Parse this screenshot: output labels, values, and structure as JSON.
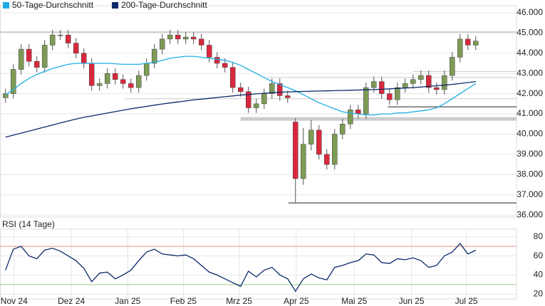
{
  "chart_data": [
    {
      "type": "candlestick",
      "legend": [
        {
          "name": "50-Tage-Durchschnitt",
          "color": "#1eaee6"
        },
        {
          "name": "200-Tage-Durchschnitt",
          "color": "#0b2a6b"
        }
      ],
      "x": [
        0,
        1,
        2,
        3,
        4,
        5,
        6,
        7,
        8,
        9,
        10,
        11,
        12,
        13,
        14,
        15,
        16,
        17,
        18,
        19,
        20,
        21,
        22,
        23,
        24,
        25,
        26,
        27,
        28,
        29,
        30,
        31,
        32,
        33,
        34,
        35,
        36,
        37,
        38,
        39,
        40,
        41,
        42,
        43,
        44,
        45,
        46,
        47,
        48,
        49,
        50,
        51,
        52,
        53,
        54,
        55,
        56,
        57,
        58,
        59,
        60
      ],
      "open": [
        41800,
        42000,
        43200,
        44200,
        43600,
        43300,
        44400,
        44900,
        44900,
        44500,
        44000,
        43500,
        42400,
        42500,
        43000,
        42700,
        42500,
        42300,
        42900,
        43500,
        44200,
        44700,
        44900,
        44700,
        44800,
        44700,
        44400,
        43800,
        43500,
        43300,
        42300,
        42100,
        41300,
        41500,
        42000,
        42500,
        41900,
        40600,
        37800,
        39500,
        40200,
        39000,
        38500,
        40000,
        40500,
        41200,
        41000,
        42300,
        42600,
        42000,
        41700,
        42300,
        42500,
        42700,
        42900,
        42300,
        42200,
        42900,
        43800,
        44700,
        44400
      ],
      "high": [
        42250,
        43450,
        44450,
        44450,
        43850,
        44650,
        45150,
        45150,
        45150,
        44750,
        44250,
        43750,
        42750,
        43250,
        43250,
        42950,
        42750,
        43150,
        43750,
        44450,
        44950,
        45150,
        45150,
        45050,
        45050,
        44950,
        44650,
        44050,
        43750,
        43550,
        42550,
        42350,
        41750,
        42250,
        42750,
        42750,
        42150,
        40800,
        40300,
        40700,
        40450,
        39250,
        40250,
        40750,
        41450,
        41450,
        42550,
        42850,
        42850,
        42250,
        42550,
        42750,
        42950,
        43150,
        43150,
        42550,
        43150,
        44050,
        44950,
        44950,
        44850
      ],
      "low": [
        41550,
        41750,
        42950,
        43350,
        43050,
        43050,
        44150,
        44650,
        44250,
        43750,
        43250,
        42150,
        42150,
        42250,
        42450,
        42250,
        42050,
        42050,
        42650,
        43250,
        43950,
        44450,
        44450,
        44450,
        44450,
        44150,
        43550,
        43250,
        43050,
        42050,
        41850,
        41050,
        41050,
        41250,
        41750,
        41650,
        41550,
        36600,
        37500,
        39200,
        38750,
        38250,
        38250,
        39750,
        40250,
        40750,
        40750,
        42050,
        41750,
        41450,
        41450,
        42050,
        42250,
        42450,
        42050,
        41950,
        41950,
        42650,
        43550,
        44150,
        44150
      ],
      "close": [
        42000,
        43200,
        44200,
        43600,
        43300,
        44400,
        44900,
        44900,
        44500,
        44000,
        43500,
        42400,
        42500,
        43000,
        42700,
        42500,
        42300,
        42900,
        43500,
        44200,
        44700,
        44900,
        44700,
        44800,
        44700,
        44400,
        43800,
        43500,
        43300,
        42300,
        42100,
        41300,
        41500,
        42000,
        42500,
        41900,
        41800,
        37800,
        39500,
        40200,
        39000,
        38500,
        40000,
        40500,
        41200,
        41000,
        42300,
        42600,
        42000,
        41700,
        42300,
        42500,
        42700,
        42900,
        42300,
        42200,
        42900,
        43800,
        44700,
        44400,
        44600
      ],
      "up_color": "#7d9b55",
      "down_color": "#d9283c",
      "series": [
        {
          "name": "50-Tage-Durchschnitt",
          "color": "#1eaee6",
          "values": [
            41950,
            42200,
            42500,
            42750,
            42950,
            43100,
            43250,
            43350,
            43450,
            43500,
            43500,
            43500,
            43500,
            43500,
            43480,
            43450,
            43450,
            43450,
            43500,
            43550,
            43650,
            43750,
            43800,
            43850,
            43850,
            43800,
            43750,
            43700,
            43650,
            43550,
            43400,
            43200,
            43000,
            42800,
            42600,
            42450,
            42300,
            42150,
            41950,
            41750,
            41550,
            41400,
            41250,
            41100,
            41050,
            41000,
            40950,
            40950,
            41000,
            41000,
            41050,
            41050,
            41100,
            41150,
            41200,
            41300,
            41500,
            41750,
            42000,
            42250,
            42500
          ]
        },
        {
          "name": "200-Tage-Durchschnitt",
          "color": "#0b2a6b",
          "values": [
            39850,
            39950,
            40050,
            40150,
            40250,
            40350,
            40450,
            40550,
            40650,
            40750,
            40830,
            40900,
            40970,
            41040,
            41110,
            41180,
            41250,
            41310,
            41370,
            41430,
            41490,
            41540,
            41590,
            41640,
            41690,
            41730,
            41770,
            41810,
            41850,
            41890,
            41930,
            41960,
            41990,
            42020,
            42050,
            42070,
            42090,
            42100,
            42110,
            42120,
            42130,
            42140,
            42150,
            42160,
            42170,
            42180,
            42190,
            42200,
            42220,
            42240,
            42260,
            42280,
            42300,
            42330,
            42360,
            42390,
            42420,
            42460,
            42500,
            42550,
            42600
          ]
        }
      ],
      "levels": [
        {
          "value": 45050,
          "x0": -0.7,
          "color": "#aaaaaa",
          "width": 1
        },
        {
          "value": 43100,
          "x0": 52,
          "color": "#cccccc",
          "width": 1
        },
        {
          "value": 42800,
          "x0": 33.4,
          "color": "#cccccc",
          "width": 1
        },
        {
          "value": 41750,
          "x0": 15.2,
          "color": "#cccccc",
          "width": 1
        },
        {
          "value": 41350,
          "x0": 48.8,
          "color": "#222222",
          "width": 1
        },
        {
          "value": 40750,
          "x0": 30,
          "color": "#cccccc",
          "width": 5
        },
        {
          "value": 36600,
          "x0": 36.1,
          "color": "#222222",
          "width": 1
        }
      ],
      "xlim": [
        -0.7,
        65.2
      ],
      "ylim": [
        35900,
        46350
      ],
      "yticks": [
        {
          "value": 36000,
          "label": "36.000"
        },
        {
          "value": 37000,
          "label": "37.000"
        },
        {
          "value": 38000,
          "label": "38.000"
        },
        {
          "value": 39000,
          "label": "39.000"
        },
        {
          "value": 40000,
          "label": "40.000"
        },
        {
          "value": 41000,
          "label": "41.000"
        },
        {
          "value": 42000,
          "label": "42.000"
        },
        {
          "value": 43000,
          "label": "43.000"
        },
        {
          "value": 44000,
          "label": "44.000"
        },
        {
          "value": 45000,
          "label": "45.000"
        },
        {
          "value": 46000,
          "label": "46.000"
        }
      ],
      "grid": true
    },
    {
      "type": "line",
      "title": "RSI (14 Tage)",
      "x": [
        0,
        1,
        2,
        3,
        4,
        5,
        6,
        7,
        8,
        9,
        10,
        11,
        12,
        13,
        14,
        15,
        16,
        17,
        18,
        19,
        20,
        21,
        22,
        23,
        24,
        25,
        26,
        27,
        28,
        29,
        30,
        31,
        32,
        33,
        34,
        35,
        36,
        37,
        38,
        39,
        40,
        41,
        42,
        43,
        44,
        45,
        46,
        47,
        48,
        49,
        50,
        51,
        52,
        53,
        54,
        55,
        56,
        57,
        58,
        59,
        60
      ],
      "series": [
        {
          "color": "#0b2a6b",
          "values": [
            45,
            67,
            70,
            60,
            57,
            66,
            68,
            65,
            60,
            55,
            47,
            33,
            42,
            43,
            36,
            40,
            45,
            55,
            64,
            67,
            62,
            61,
            60,
            61,
            57,
            50,
            43,
            40,
            36,
            32,
            28,
            44,
            38,
            45,
            48,
            40,
            36,
            23,
            36,
            41,
            37,
            35,
            48,
            50,
            53,
            55,
            62,
            61,
            53,
            52,
            57,
            56,
            58,
            55,
            48,
            50,
            60,
            64,
            73,
            62,
            66
          ]
        }
      ],
      "levels": [
        {
          "value": 70,
          "x0": -0.7,
          "color": "#f08c8c",
          "width": 1
        },
        {
          "value": 30,
          "x0": -0.7,
          "color": "#9ccf8c",
          "width": 1
        }
      ],
      "xlim": [
        -0.7,
        65.2
      ],
      "ylim": [
        15,
        88
      ],
      "xticks": [
        {
          "value": 1.1,
          "label": "Nov 24"
        },
        {
          "value": 8.4,
          "label": "Dez 24"
        },
        {
          "value": 15.6,
          "label": "Jan 25"
        },
        {
          "value": 22.7,
          "label": "Feb 25"
        },
        {
          "value": 29.8,
          "label": "Mrz 25"
        },
        {
          "value": 37.1,
          "label": "Apr 25"
        },
        {
          "value": 44.5,
          "label": "Mai 25"
        },
        {
          "value": 51.8,
          "label": "Jun 25"
        },
        {
          "value": 58.8,
          "label": "Jul 25"
        }
      ],
      "yticks": [
        20,
        40,
        60,
        80
      ],
      "grid": true
    }
  ]
}
